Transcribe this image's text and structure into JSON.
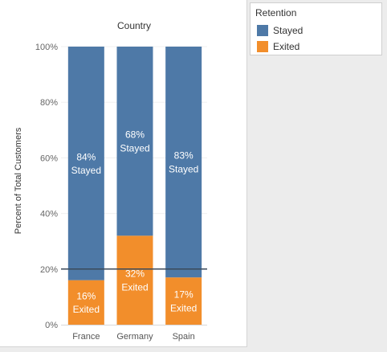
{
  "legend": {
    "title": "Retention",
    "items": [
      {
        "label": "Stayed",
        "color": "#4e79a7"
      },
      {
        "label": "Exited",
        "color": "#f28e2b"
      }
    ]
  },
  "chart_data": {
    "type": "bar",
    "stacked": true,
    "title": "Country",
    "xlabel": "",
    "ylabel": "Percent of Total Customers",
    "categories": [
      "France",
      "Germany",
      "Spain"
    ],
    "series": [
      {
        "name": "Exited",
        "color": "#f28e2b",
        "values": [
          16,
          32,
          17
        ],
        "labels": [
          "16%\nExited",
          "32%\nExited",
          "17%\nExited"
        ]
      },
      {
        "name": "Stayed",
        "color": "#4e79a7",
        "values": [
          84,
          68,
          83
        ],
        "labels": [
          "84%\nStayed",
          "68%\nStayed",
          "83%\nStayed"
        ]
      }
    ],
    "ylim": [
      0,
      100
    ],
    "yticks": [
      "0%",
      "20%",
      "40%",
      "60%",
      "80%",
      "100%"
    ],
    "ytick_values": [
      0,
      20,
      40,
      60,
      80,
      100
    ],
    "reference_line": {
      "y": 20
    },
    "grid": true,
    "legend_position": "top-right"
  }
}
